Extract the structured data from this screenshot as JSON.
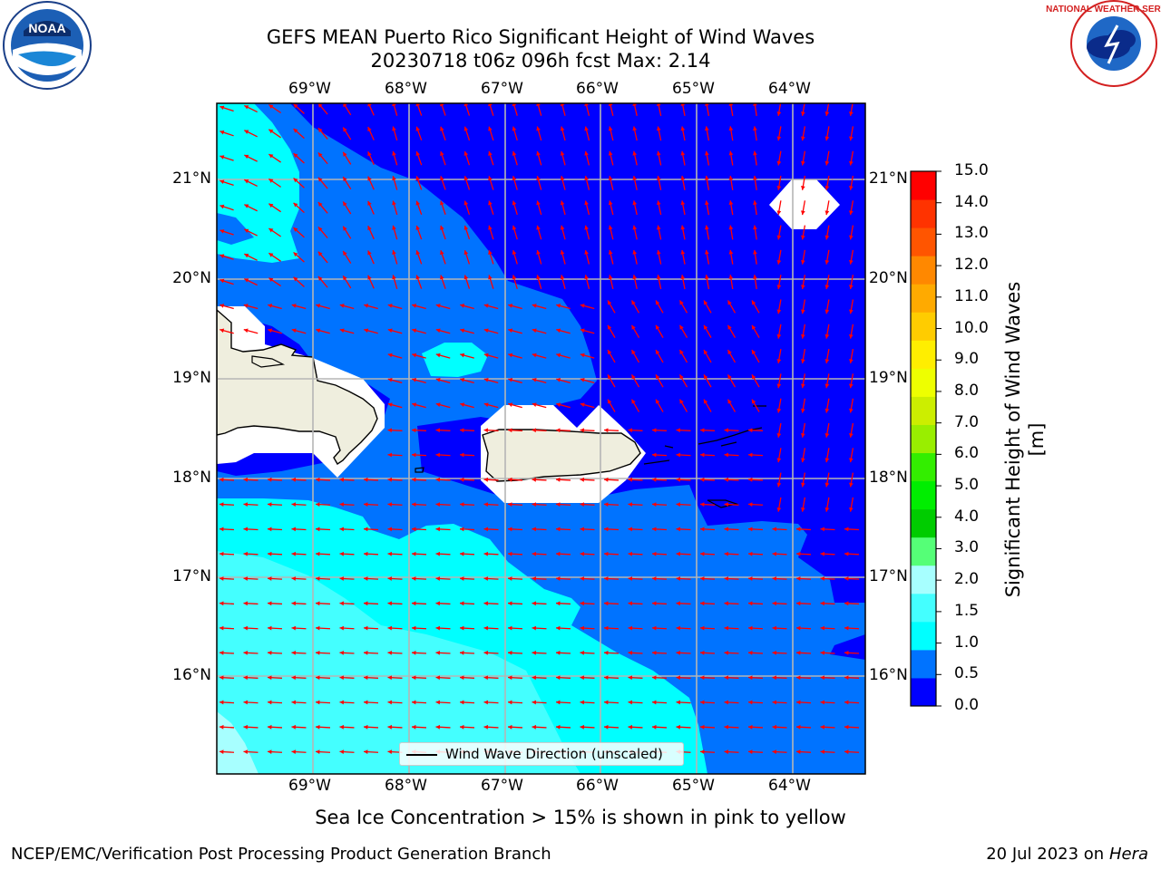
{
  "title_line1": "GEFS MEAN Puerto Rico Significant Height of Wind Waves",
  "title_line2": "20230718 t06z 096h fcst   Max: 2.14",
  "lon_labels": [
    "69°W",
    "68°W",
    "67°W",
    "66°W",
    "65°W",
    "64°W"
  ],
  "lat_labels": [
    "21°N",
    "20°N",
    "19°N",
    "18°N",
    "17°N",
    "16°N"
  ],
  "legend_label": "Wind Wave Direction (unscaled)",
  "colorbar": {
    "title": "Significant Height of Wind Waves [m]",
    "ticks": [
      "15.0",
      "14.0",
      "13.0",
      "12.0",
      "11.0",
      "10.0",
      "9.0",
      "8.0",
      "7.0",
      "6.0",
      "5.0",
      "4.0",
      "3.0",
      "2.0",
      "1.5",
      "1.0",
      "0.5",
      "0.0"
    ],
    "colors": [
      "#0000ff",
      "#0073ff",
      "#00ffff",
      "#44ffff",
      "#a7ffff",
      "#55ff77",
      "#00cc00",
      "#00ee00",
      "#33ee00",
      "#99ee00",
      "#ccee00",
      "#eeff00",
      "#ffee00",
      "#ffcc00",
      "#ffaa00",
      "#ff8800",
      "#ff5500",
      "#ff3300",
      "#ff0000"
    ]
  },
  "caption": "Sea Ice Concentration > 15% is shown in pink to yellow",
  "footer_left": "NCEP/EMC/Verification Post Processing Product Generation Branch",
  "footer_right_prefix": "20 Jul 2023 on ",
  "footer_right_host": "Hera",
  "colors": {
    "band_0_05": "#0000ff",
    "band_05_10": "#0073ff",
    "band_10_15": "#00ffff",
    "band_15_20": "#44ffff",
    "band_20_30": "#a7ffff",
    "land": "#efeede",
    "arrows": "#ff0000"
  },
  "logos": {
    "left": "NOAA",
    "right": "NATIONAL WEATHER SERVICE"
  }
}
